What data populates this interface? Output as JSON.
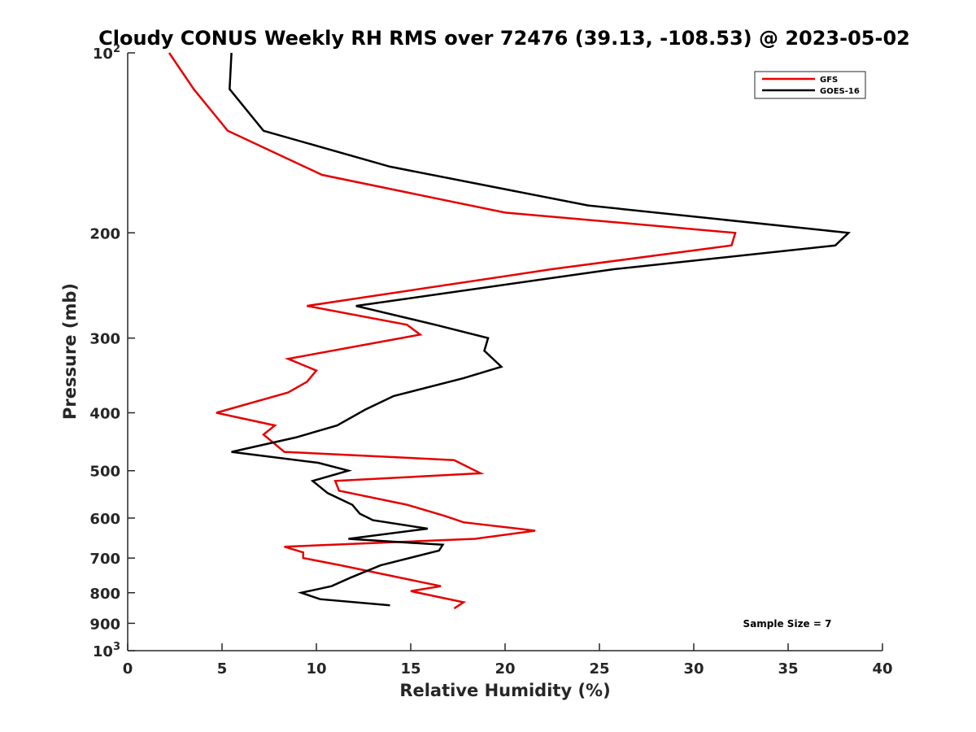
{
  "chart_data": {
    "type": "line",
    "title": "Cloudy CONUS Weekly RH RMS over 72476 (39.13, -108.53) @ 2023-05-02",
    "xlabel": "Relative Humidity (%)",
    "ylabel": "Pressure (mb)",
    "xlim": [
      0,
      40
    ],
    "ylim": [
      1000,
      100
    ],
    "y_scale": "log",
    "y_inverted": true,
    "grid": false,
    "legend_position": "top-right",
    "x_ticks": [
      0,
      5,
      10,
      15,
      20,
      25,
      30,
      35,
      40
    ],
    "y_ticks": [
      {
        "value": 100,
        "base": "10",
        "exp": "2"
      },
      {
        "value": 200,
        "label": "200"
      },
      {
        "value": 300,
        "label": "300"
      },
      {
        "value": 400,
        "label": "400"
      },
      {
        "value": 500,
        "label": "500"
      },
      {
        "value": 600,
        "label": "600"
      },
      {
        "value": 700,
        "label": "700"
      },
      {
        "value": 800,
        "label": "800"
      },
      {
        "value": 900,
        "label": "900"
      },
      {
        "value": 1000,
        "base": "10",
        "exp": "3"
      }
    ],
    "annotation": "Sample Size = 7",
    "series": [
      {
        "name": "GFS",
        "color": "#e50000",
        "points": [
          [
            2.2,
            100
          ],
          [
            3.5,
            115
          ],
          [
            5.3,
            135
          ],
          [
            10.3,
            160
          ],
          [
            20.0,
            185
          ],
          [
            32.2,
            200
          ],
          [
            32.0,
            210
          ],
          [
            22.5,
            230
          ],
          [
            9.5,
            265
          ],
          [
            14.8,
            285
          ],
          [
            15.5,
            296
          ],
          [
            8.5,
            325
          ],
          [
            10.0,
            340
          ],
          [
            9.5,
            355
          ],
          [
            8.5,
            370
          ],
          [
            4.7,
            400
          ],
          [
            7.8,
            420
          ],
          [
            7.2,
            435
          ],
          [
            8.3,
            465
          ],
          [
            17.3,
            480
          ],
          [
            18.7,
            505
          ],
          [
            11.0,
            520
          ],
          [
            11.2,
            540
          ],
          [
            14.8,
            570
          ],
          [
            16.8,
            595
          ],
          [
            17.8,
            610
          ],
          [
            21.6,
            630
          ],
          [
            18.4,
            650
          ],
          [
            8.3,
            670
          ],
          [
            9.3,
            685
          ],
          [
            9.3,
            700
          ],
          [
            11.3,
            720
          ],
          [
            16.6,
            780
          ],
          [
            15.0,
            795
          ],
          [
            17.8,
            830
          ],
          [
            17.3,
            850
          ]
        ]
      },
      {
        "name": "GOES-16",
        "color": "#000000",
        "points": [
          [
            5.5,
            100
          ],
          [
            5.4,
            115
          ],
          [
            7.2,
            135
          ],
          [
            13.9,
            155
          ],
          [
            24.4,
            180
          ],
          [
            38.2,
            200
          ],
          [
            37.5,
            210
          ],
          [
            25.8,
            230
          ],
          [
            12.1,
            265
          ],
          [
            16.3,
            285
          ],
          [
            19.1,
            300
          ],
          [
            18.9,
            315
          ],
          [
            19.8,
            335
          ],
          [
            17.8,
            350
          ],
          [
            14.1,
            375
          ],
          [
            12.6,
            395
          ],
          [
            11.1,
            420
          ],
          [
            8.9,
            440
          ],
          [
            5.5,
            465
          ],
          [
            10.1,
            485
          ],
          [
            11.7,
            500
          ],
          [
            9.8,
            520
          ],
          [
            10.6,
            545
          ],
          [
            11.9,
            570
          ],
          [
            12.3,
            590
          ],
          [
            13.0,
            605
          ],
          [
            15.9,
            625
          ],
          [
            11.7,
            650
          ],
          [
            16.7,
            665
          ],
          [
            16.5,
            680
          ],
          [
            13.4,
            720
          ],
          [
            11.8,
            755
          ],
          [
            10.8,
            780
          ],
          [
            9.2,
            800
          ],
          [
            10.2,
            820
          ],
          [
            13.9,
            840
          ]
        ]
      }
    ]
  }
}
